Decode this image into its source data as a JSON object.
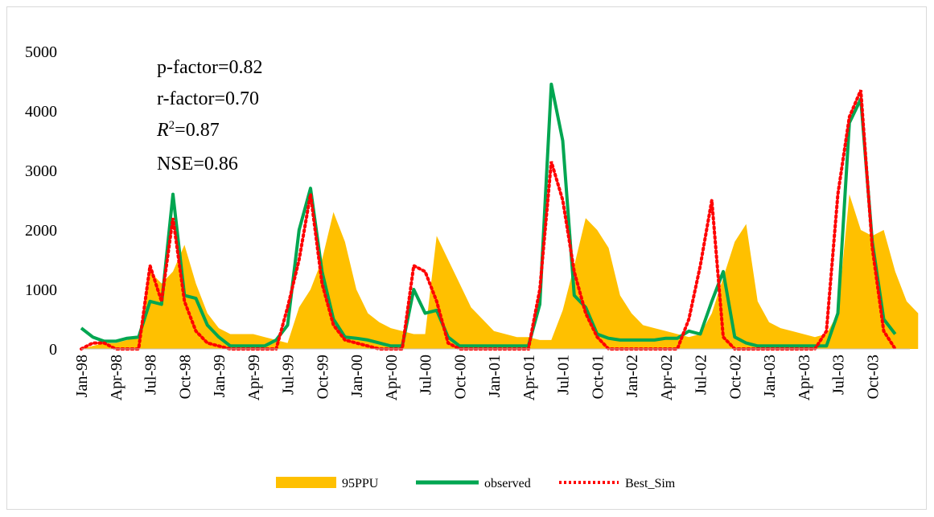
{
  "chart_data": {
    "type": "line",
    "title": "",
    "xlabel": "",
    "ylabel": "",
    "ylim": [
      0,
      5000
    ],
    "yticks": [
      0,
      1000,
      2000,
      3000,
      4000,
      5000
    ],
    "grid": false,
    "legend_position": "bottom",
    "x_tick_labels": [
      "Jan-98",
      "Apr-98",
      "Jul-98",
      "Oct-98",
      "Jan-99",
      "Apr-99",
      "Jul-99",
      "Oct-99",
      "Jan-00",
      "Apr-00",
      "Jul-00",
      "Oct-00",
      "Jan-01",
      "Apr-01",
      "Jul-01",
      "Oct-01",
      "Jan-02",
      "Apr-02",
      "Jul-02",
      "Oct-02",
      "Jan-03",
      "Apr-03",
      "Jul-03",
      "Oct-03"
    ],
    "annotations": {
      "p_factor": "p-factor=0.82",
      "r_factor": "r-factor=0.70",
      "r2_symbol": "R",
      "r2_exp": "2",
      "r2_value": "=0.87",
      "nse": "NSE=0.86"
    },
    "series": [
      {
        "name": "95PPU",
        "kind": "band",
        "color": "#ffc000",
        "values": [
          0,
          50,
          100,
          100,
          150,
          200,
          1300,
          1100,
          1300,
          1750,
          1100,
          600,
          350,
          250,
          250,
          250,
          200,
          150,
          100,
          700,
          1000,
          1500,
          2300,
          1800,
          1000,
          600,
          450,
          350,
          300,
          250,
          250,
          1900,
          1500,
          1100,
          700,
          500,
          300,
          250,
          200,
          200,
          150,
          150,
          650,
          1400,
          2200,
          2000,
          1700,
          900,
          600,
          400,
          350,
          300,
          250,
          200,
          250,
          600,
          1200,
          1800,
          2100,
          800,
          450,
          350,
          300,
          250,
          200,
          250,
          600,
          2600,
          2000,
          1900,
          2000,
          1300,
          800,
          600
        ]
      },
      {
        "name": "observed",
        "kind": "line",
        "color": "#00a651",
        "values": [
          350,
          200,
          130,
          130,
          180,
          200,
          800,
          750,
          2600,
          900,
          850,
          400,
          200,
          50,
          50,
          50,
          50,
          150,
          400,
          2000,
          2700,
          1300,
          500,
          200,
          180,
          150,
          100,
          50,
          50,
          1000,
          600,
          650,
          200,
          50,
          50,
          50,
          50,
          50,
          50,
          50,
          750,
          4450,
          3500,
          900,
          700,
          250,
          180,
          150,
          150,
          150,
          150,
          180,
          180,
          300,
          250,
          800,
          1300,
          200,
          100,
          50,
          50,
          50,
          50,
          50,
          50,
          50,
          600,
          3800,
          4200,
          1800,
          500,
          250
        ]
      },
      {
        "name": "Best_Sim",
        "kind": "dotted-line",
        "color": "#ff0000",
        "values": [
          0,
          100,
          100,
          0,
          0,
          0,
          1400,
          800,
          2200,
          800,
          300,
          100,
          50,
          0,
          0,
          0,
          0,
          0,
          700,
          1500,
          2600,
          1100,
          400,
          150,
          100,
          50,
          0,
          0,
          0,
          1400,
          1300,
          800,
          100,
          0,
          0,
          0,
          0,
          0,
          0,
          0,
          1000,
          3150,
          2500,
          1300,
          600,
          200,
          0,
          0,
          0,
          0,
          0,
          0,
          0,
          500,
          1400,
          2500,
          200,
          0,
          0,
          0,
          0,
          0,
          0,
          0,
          0,
          300,
          2600,
          3900,
          4350,
          1700,
          300,
          0
        ]
      }
    ]
  },
  "legend": {
    "ppu_label": "95PPU",
    "observed_label": "observed",
    "sim_label": "Best_Sim"
  }
}
